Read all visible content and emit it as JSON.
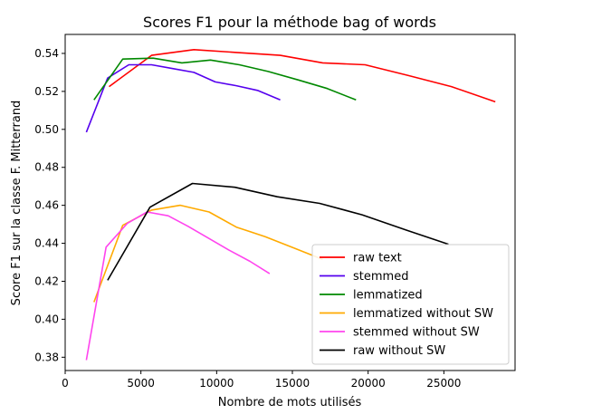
{
  "chart_data": {
    "type": "line",
    "title": "Scores F1 pour la méthode bag of words",
    "xlabel": "Nombre de mots utilisés",
    "ylabel": "Score F1 sur la classe F. Mitterrand",
    "xlim": [
      0,
      29700
    ],
    "ylim": [
      0.373,
      0.55
    ],
    "xticks": [
      0,
      5000,
      10000,
      15000,
      20000,
      25000
    ],
    "xtick_labels": [
      "0",
      "5000",
      "10000",
      "15000",
      "20000",
      "25000"
    ],
    "yticks": [
      0.38,
      0.4,
      0.42,
      0.44,
      0.46,
      0.48,
      0.5,
      0.52,
      0.54
    ],
    "ytick_labels": [
      "0.38",
      "0.40",
      "0.42",
      "0.44",
      "0.46",
      "0.48",
      "0.50",
      "0.52",
      "0.54"
    ],
    "grid": false,
    "legend_position": "lower-right",
    "series": [
      {
        "name": "raw text",
        "color": "#ff0000",
        "x": [
          2900,
          5700,
          8500,
          11300,
          14200,
          17000,
          19800,
          22600,
          25500,
          28400
        ],
        "y": [
          0.5225,
          0.539,
          0.542,
          0.5405,
          0.539,
          0.535,
          0.534,
          0.5285,
          0.5225,
          0.5145
        ]
      },
      {
        "name": "stemmed",
        "color": "#5500ee",
        "x": [
          1400,
          2800,
          4200,
          5700,
          7100,
          8500,
          9900,
          11300,
          12700,
          14200
        ],
        "y": [
          0.4985,
          0.527,
          0.534,
          0.534,
          0.532,
          0.53,
          0.525,
          0.523,
          0.5205,
          0.5155
        ]
      },
      {
        "name": "lemmatized",
        "color": "#008800",
        "x": [
          1900,
          3800,
          5800,
          7700,
          9600,
          11500,
          13400,
          15400,
          17300,
          19200
        ],
        "y": [
          0.5155,
          0.537,
          0.5375,
          0.535,
          0.5365,
          0.534,
          0.5305,
          0.526,
          0.5215,
          0.5155
        ]
      },
      {
        "name": "lemmatized without SW",
        "color": "#ffaa00",
        "x": [
          1900,
          3800,
          5700,
          7600,
          9500,
          11300,
          13200,
          15100,
          17000
        ],
        "y": [
          0.409,
          0.4495,
          0.4575,
          0.46,
          0.4565,
          0.4485,
          0.4435,
          0.4375,
          0.4315
        ]
      },
      {
        "name": "stemmed without SW",
        "color": "#ff44ee",
        "x": [
          1400,
          2700,
          4100,
          5400,
          6800,
          8100,
          9500,
          10800,
          12200,
          13500
        ],
        "y": [
          0.3785,
          0.438,
          0.4505,
          0.4565,
          0.4545,
          0.449,
          0.4425,
          0.4365,
          0.4305,
          0.424
        ]
      },
      {
        "name": "raw without SW",
        "color": "#000000",
        "x": [
          2800,
          5600,
          8400,
          11200,
          14000,
          16800,
          19600,
          22500,
          25300
        ],
        "y": [
          0.4205,
          0.459,
          0.4715,
          0.4695,
          0.4645,
          0.461,
          0.455,
          0.447,
          0.4395
        ]
      }
    ]
  }
}
